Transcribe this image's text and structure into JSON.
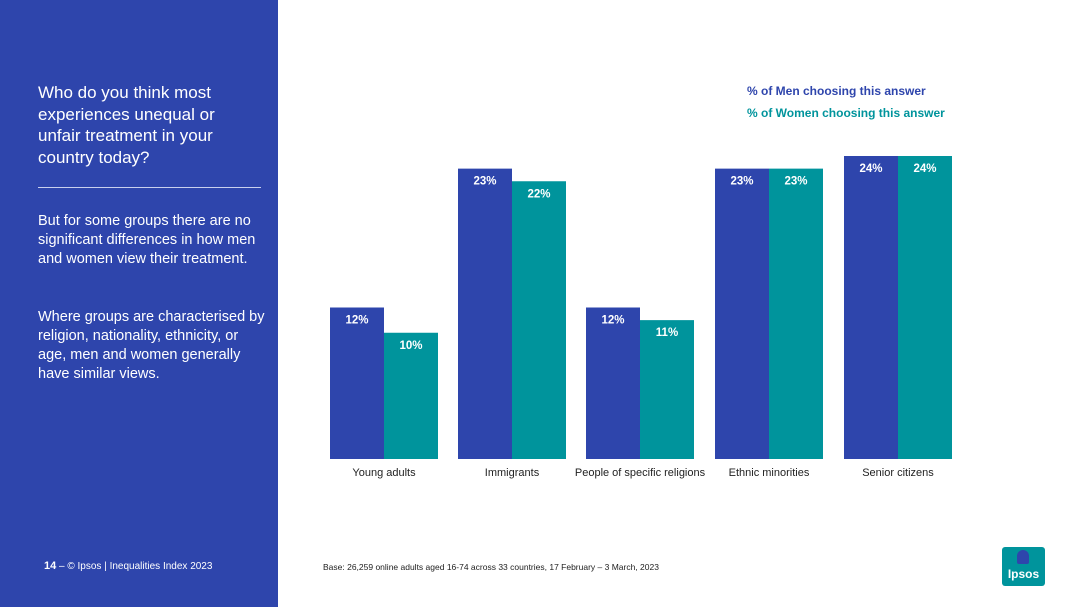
{
  "sidebar": {
    "question": "Who do you think most experiences unequal or unfair treatment in your country today?",
    "note1": "But for some groups there are no significant differences in how men and women view their treatment.",
    "note2": "Where groups are characterised by religion, nationality, ethnicity, or age, men and women generally have similar views.",
    "page_number": "14",
    "page_separator": " – ",
    "footer_text": "© Ipsos | Inequalities Index 2023"
  },
  "base_note": "Base: 26,259 online adults aged 16-74 across 33 countries, 17 February – 3 March, 2023",
  "logo": {
    "text": "Ipsos",
    "color": "#00949c"
  },
  "colors": {
    "men": "#2e45ac",
    "women": "#00949c",
    "sidebar": "#2e45ac"
  },
  "chart_data": {
    "type": "bar",
    "categories": [
      "Young adults",
      "Immigrants",
      "People of specific religions",
      "Ethnic minorities",
      "Senior citizens"
    ],
    "series": [
      {
        "name": "% of Men choosing this answer",
        "values": [
          12,
          23,
          12,
          23,
          24
        ],
        "labels": [
          "12%",
          "23%",
          "12%",
          "23%",
          "24%"
        ],
        "color": "#2e45ac"
      },
      {
        "name": "% of Women choosing this answer",
        "values": [
          10,
          22,
          11,
          23,
          24
        ],
        "labels": [
          "10%",
          "22%",
          "11%",
          "23%",
          "24%"
        ],
        "color": "#00949c"
      }
    ],
    "ylim": [
      0,
      24
    ],
    "legend_position": "top-right",
    "grid": false
  }
}
